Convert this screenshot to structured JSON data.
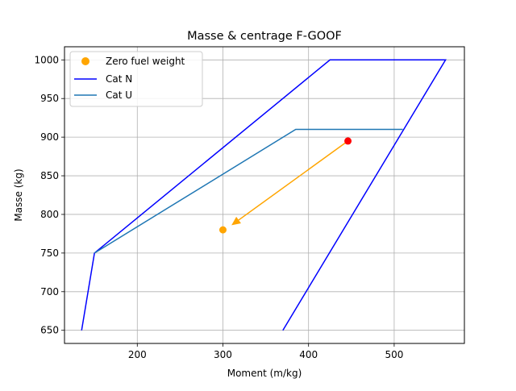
{
  "chart_data": {
    "type": "line",
    "title": "Masse & centrage F-GOOF",
    "xlabel": "Moment (m/kg)",
    "ylabel": "Masse (kg)",
    "xlim": [
      115,
      582
    ],
    "ylim": [
      633,
      1017
    ],
    "xticks": [
      200,
      300,
      400,
      500
    ],
    "yticks": [
      650,
      700,
      750,
      800,
      850,
      900,
      950,
      1000
    ],
    "grid": true,
    "legend_position": "top-left",
    "series": [
      {
        "name": "Cat N",
        "kind": "line",
        "color": "#0000ff",
        "points": [
          [
            135,
            650
          ],
          [
            150,
            750
          ],
          [
            425,
            1000
          ],
          [
            560,
            1000
          ],
          [
            370,
            650
          ]
        ]
      },
      {
        "name": "Cat U",
        "kind": "line",
        "color": "#1f77b4",
        "points": [
          [
            150,
            750
          ],
          [
            385,
            910
          ],
          [
            510,
            910
          ]
        ]
      },
      {
        "name": "Zero fuel weight",
        "kind": "scatter",
        "color": "#ffa500",
        "points": [
          [
            300,
            780
          ]
        ]
      }
    ],
    "extra_points": [
      {
        "label": "",
        "color": "#ff0000",
        "x": 446,
        "y": 895
      }
    ],
    "arrow": {
      "color": "#ffa500",
      "from": [
        446,
        895
      ],
      "to": [
        310,
        786
      ]
    }
  }
}
